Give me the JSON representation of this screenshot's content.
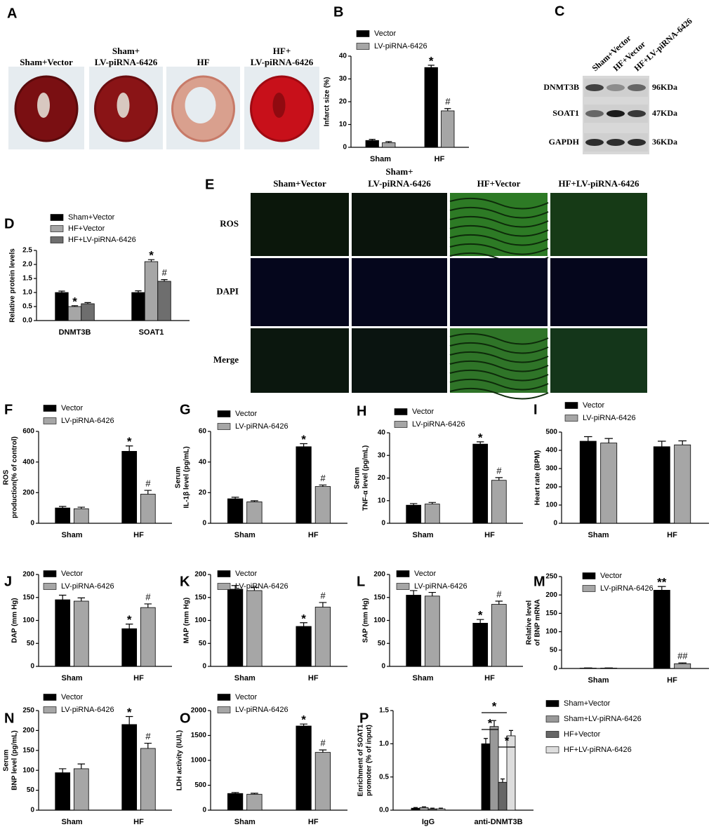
{
  "chart_data": [
    {
      "type": "bar",
      "panel": "B",
      "ylabel": "Infarct size (%)",
      "categories": [
        "Sham",
        "HF"
      ],
      "ylim": [
        0,
        40
      ],
      "yticks": [
        0,
        10,
        20,
        30,
        40
      ],
      "legend": "top-left",
      "series": [
        {
          "name": "Vector",
          "color": "#000000",
          "values": [
            3,
            35
          ],
          "errors": [
            0.5,
            1
          ],
          "marks": [
            null,
            "*"
          ]
        },
        {
          "name": "LV-piRNA-6426",
          "color": "#a6a6a6",
          "values": [
            2,
            16
          ],
          "errors": [
            0.5,
            1
          ],
          "marks": [
            null,
            "#"
          ]
        }
      ]
    },
    {
      "type": "bar",
      "panel": "D",
      "ylabel": "Relative protein levels",
      "categories": [
        "DNMT3B",
        "SOAT1"
      ],
      "ylim": [
        0,
        2.5
      ],
      "yticks": [
        {
          "value": 0,
          "label": "0.0"
        },
        0.5,
        {
          "value": 1,
          "label": "1.0"
        },
        1.5,
        {
          "value": 2,
          "label": "2.0"
        },
        2.5
      ],
      "legend": "top-left",
      "series": [
        {
          "name": "Sham+Vector",
          "color": "#000000",
          "values": [
            1.0,
            1.0
          ],
          "errors": [
            0.05,
            0.06
          ],
          "marks": [
            null,
            null
          ]
        },
        {
          "name": "HF+Vector",
          "color": "#a6a6a6",
          "values": [
            0.5,
            2.1
          ],
          "errors": [
            0.03,
            0.07
          ],
          "marks": [
            "*",
            "*"
          ]
        },
        {
          "name": "HF+LV-piRNA-6426",
          "color": "#6e6e6e",
          "values": [
            0.6,
            1.4
          ],
          "errors": [
            0.04,
            0.06
          ],
          "marks": [
            null,
            "#"
          ]
        }
      ]
    },
    {
      "type": "bar",
      "panel": "F",
      "ylabel": [
        "ROS",
        "production(% of control)"
      ],
      "categories": [
        "Sham",
        "HF"
      ],
      "ylim": [
        0,
        600
      ],
      "yticks": [
        0,
        200,
        400,
        600
      ],
      "legend": "top-left",
      "series": [
        {
          "name": "Vector",
          "color": "#000000",
          "values": [
            100,
            470
          ],
          "errors": [
            10,
            35
          ],
          "marks": [
            null,
            "*"
          ]
        },
        {
          "name": "LV-piRNA-6426",
          "color": "#a6a6a6",
          "values": [
            95,
            190
          ],
          "errors": [
            10,
            25
          ],
          "marks": [
            null,
            "#"
          ]
        }
      ]
    },
    {
      "type": "bar",
      "panel": "G",
      "ylabel": [
        "Serum",
        "IL-1β level (pg/mL)"
      ],
      "categories": [
        "Sham",
        "HF"
      ],
      "ylim": [
        0,
        60
      ],
      "yticks": [
        0,
        20,
        40,
        60
      ],
      "legend": "top-left",
      "series": [
        {
          "name": "Vector",
          "color": "#000000",
          "values": [
            16,
            50
          ],
          "errors": [
            1,
            2
          ],
          "marks": [
            null,
            "*"
          ]
        },
        {
          "name": "LV-piRNA-6426",
          "color": "#a6a6a6",
          "values": [
            14,
            24
          ],
          "errors": [
            0.7,
            1
          ],
          "marks": [
            null,
            "#"
          ]
        }
      ]
    },
    {
      "type": "bar",
      "panel": "H",
      "ylabel": [
        "Serum",
        "TNF-α level (pg/mL)"
      ],
      "categories": [
        "Sham",
        "HF"
      ],
      "ylim": [
        0,
        40
      ],
      "yticks": [
        0,
        10,
        20,
        30,
        40
      ],
      "legend": "top-left",
      "series": [
        {
          "name": "Vector",
          "color": "#000000",
          "values": [
            8,
            35
          ],
          "errors": [
            0.7,
            1
          ],
          "marks": [
            null,
            "*"
          ]
        },
        {
          "name": "LV-piRNA-6426",
          "color": "#a6a6a6",
          "values": [
            8.5,
            19
          ],
          "errors": [
            0.7,
            1.2
          ],
          "marks": [
            null,
            "#"
          ]
        }
      ]
    },
    {
      "type": "bar",
      "panel": "I",
      "ylabel": "Heart rate (BPM)",
      "categories": [
        "Sham",
        "HF"
      ],
      "ylim": [
        0,
        500
      ],
      "yticks": [
        0,
        100,
        200,
        300,
        400,
        500
      ],
      "legend": "top-left",
      "series": [
        {
          "name": "Vector",
          "color": "#000000",
          "values": [
            450,
            420
          ],
          "errors": [
            25,
            30
          ]
        },
        {
          "name": "LV-piRNA-6426",
          "color": "#a6a6a6",
          "values": [
            440,
            430
          ],
          "errors": [
            25,
            22
          ]
        }
      ]
    },
    {
      "type": "bar",
      "panel": "J",
      "ylabel": "DAP (mm Hg)",
      "categories": [
        "Sham",
        "HF"
      ],
      "ylim": [
        0,
        200
      ],
      "yticks": [
        0,
        50,
        100,
        150,
        200
      ],
      "legend": "top-left",
      "series": [
        {
          "name": "Vector",
          "color": "#000000",
          "values": [
            145,
            82
          ],
          "errors": [
            10,
            10
          ],
          "marks": [
            null,
            "*"
          ]
        },
        {
          "name": "LV-piRNA-6426",
          "color": "#a6a6a6",
          "values": [
            142,
            128
          ],
          "errors": [
            7,
            8
          ],
          "marks": [
            null,
            "#"
          ]
        }
      ]
    },
    {
      "type": "bar",
      "panel": "K",
      "ylabel": "MAP (mm Hg)",
      "categories": [
        "Sham",
        "HF"
      ],
      "ylim": [
        0,
        200
      ],
      "yticks": [
        0,
        50,
        100,
        150,
        200
      ],
      "legend": "top-left",
      "series": [
        {
          "name": "Vector",
          "color": "#000000",
          "values": [
            168,
            87
          ],
          "errors": [
            8,
            8
          ],
          "marks": [
            null,
            "*"
          ]
        },
        {
          "name": "LV-piRNA-6426",
          "color": "#a6a6a6",
          "values": [
            165,
            129
          ],
          "errors": [
            7,
            10
          ],
          "marks": [
            null,
            "#"
          ]
        }
      ]
    },
    {
      "type": "bar",
      "panel": "L",
      "ylabel": "SAP (mm Hg)",
      "categories": [
        "Sham",
        "HF"
      ],
      "ylim": [
        0,
        200
      ],
      "yticks": [
        0,
        50,
        100,
        150,
        200
      ],
      "legend": "top-left",
      "series": [
        {
          "name": "Vector",
          "color": "#000000",
          "values": [
            155,
            94
          ],
          "errors": [
            10,
            8
          ],
          "marks": [
            null,
            "*"
          ]
        },
        {
          "name": "LV-piRNA-6426",
          "color": "#a6a6a6",
          "values": [
            153,
            135
          ],
          "errors": [
            8,
            7
          ],
          "marks": [
            null,
            "#"
          ]
        }
      ]
    },
    {
      "type": "bar",
      "panel": "M",
      "ylabel": [
        "Relative level",
        "of BNP mRNA"
      ],
      "categories": [
        "Sham",
        "HF"
      ],
      "ylim": [
        0,
        250
      ],
      "yticks": [
        0,
        50,
        100,
        150,
        200,
        250
      ],
      "legend": "top-left",
      "series": [
        {
          "name": "Vector",
          "color": "#000000",
          "values": [
            1,
            213
          ],
          "errors": [
            0.5,
            10
          ],
          "marks": [
            null,
            "**"
          ]
        },
        {
          "name": "LV-piRNA-6426",
          "color": "#a6a6a6",
          "values": [
            1,
            13
          ],
          "errors": [
            0.5,
            2
          ],
          "marks": [
            null,
            "##"
          ]
        }
      ]
    },
    {
      "type": "bar",
      "panel": "N",
      "ylabel": [
        "Serum",
        "BNP level (pg/mL)"
      ],
      "categories": [
        "Sham",
        "HF"
      ],
      "ylim": [
        0,
        250
      ],
      "yticks": [
        0,
        50,
        100,
        150,
        200,
        250
      ],
      "legend": "top-left",
      "series": [
        {
          "name": "Vector",
          "color": "#000000",
          "values": [
            94,
            215
          ],
          "errors": [
            10,
            20
          ],
          "marks": [
            null,
            "*"
          ]
        },
        {
          "name": "LV-piRNA-6426",
          "color": "#a6a6a6",
          "values": [
            104,
            155
          ],
          "errors": [
            12,
            13
          ],
          "marks": [
            null,
            "#"
          ]
        }
      ]
    },
    {
      "type": "bar",
      "panel": "O",
      "ylabel": "LDH activity (IU/L)",
      "categories": [
        "Sham",
        "HF"
      ],
      "ylim": [
        0,
        2000
      ],
      "yticks": [
        0,
        500,
        1000,
        1500,
        2000
      ],
      "legend": "top-left",
      "series": [
        {
          "name": "Vector",
          "color": "#000000",
          "values": [
            335,
            1690
          ],
          "errors": [
            20,
            40
          ],
          "marks": [
            null,
            "*"
          ]
        },
        {
          "name": "LV-piRNA-6426",
          "color": "#a6a6a6",
          "values": [
            320,
            1160
          ],
          "errors": [
            20,
            50
          ],
          "marks": [
            null,
            "#"
          ]
        }
      ]
    },
    {
      "type": "bar",
      "panel": "P",
      "ylabel": [
        "Enrichment of SOAT1",
        "promoter (% of input)"
      ],
      "categories": [
        "IgG",
        "anti-DNMT3B"
      ],
      "ylim": [
        0,
        1.5
      ],
      "yticks": [
        {
          "value": 0,
          "label": "0.0"
        },
        0.5,
        {
          "value": 1,
          "label": "1.0"
        },
        1.5
      ],
      "legend": "right",
      "brackets": [
        "*",
        "*",
        "*"
      ],
      "series": [
        {
          "name": "Sham+Vector",
          "color": "#000000",
          "values": [
            0.03,
            1.0
          ],
          "errors": [
            0.01,
            0.08
          ]
        },
        {
          "name": "Sham+LV-piRNA-6426",
          "color": "#999999",
          "values": [
            0.04,
            1.26
          ],
          "errors": [
            0.01,
            0.09
          ]
        },
        {
          "name": "HF+Vector",
          "color": "#666666",
          "values": [
            0.02,
            0.42
          ],
          "errors": [
            0.01,
            0.05
          ]
        },
        {
          "name": "HF+LV-piRNA-6426",
          "color": "#dddddd",
          "values": [
            0.02,
            1.12
          ],
          "errors": [
            0.01,
            0.08
          ]
        }
      ]
    }
  ],
  "figure": {
    "A": {
      "panel": "A",
      "labels": [
        "Sham+Vector",
        [
          "Sham+",
          "LV-piRNA-6426"
        ],
        "HF",
        [
          "HF+",
          "LV-piRNA-6426"
        ]
      ]
    },
    "C": {
      "panel": "C",
      "lanes": [
        "Sham+Vector",
        "HF+Vector",
        "HF+LV-piRNA-6426"
      ],
      "proteins": [
        "DNMT3B",
        "SOAT1",
        "GAPDH"
      ],
      "sizes": [
        "96KDa",
        "47KDa",
        "36KDa"
      ]
    },
    "E": {
      "panel": "E",
      "columns": [
        "Sham+Vector",
        [
          "Sham+",
          "LV-piRNA-6426"
        ],
        "HF+Vector",
        "HF+LV-piRNA-6426"
      ],
      "rows": [
        "ROS",
        "DAPI",
        "Merge"
      ]
    }
  }
}
